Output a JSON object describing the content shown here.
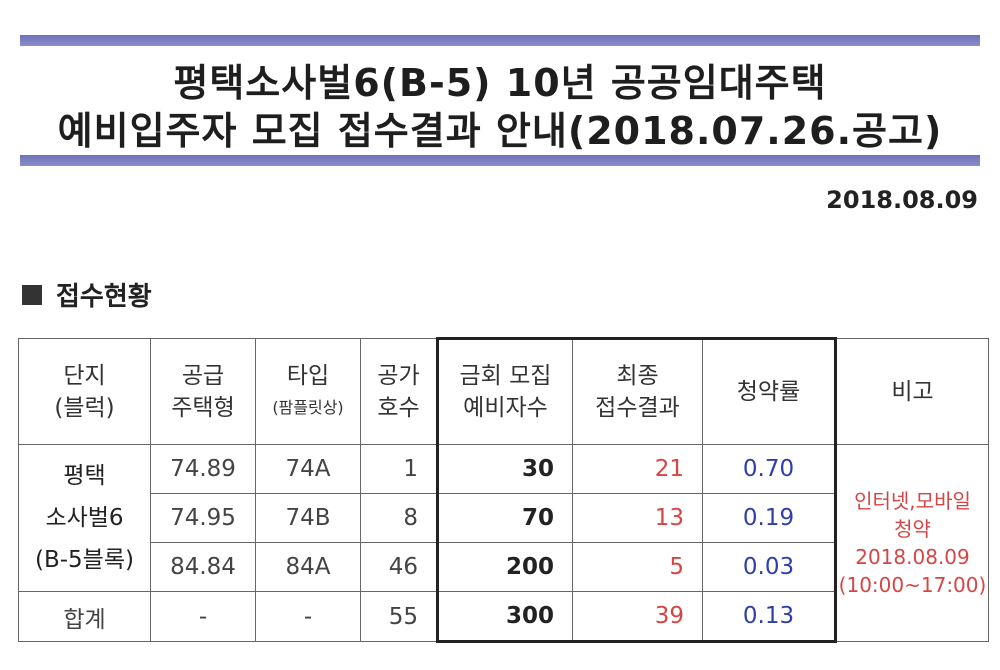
{
  "header": {
    "title_line1": "평택소사벌6(B-5) 10년 공공임대주택",
    "title_line2": "예비입주자 모집 접수결과 안내(2018.07.26.공고)",
    "date": "2018.08.09"
  },
  "section": {
    "title": "접수현황"
  },
  "table": {
    "headers": {
      "complex_line1": "단지",
      "complex_line2": "(블럭)",
      "supply_line1": "공급",
      "supply_line2": "주택형",
      "type_line1": "타입",
      "type_line2": "(팜플릿상)",
      "vacant_line1": "공가",
      "vacant_line2": "호수",
      "recruit_line1": "금회 모집",
      "recruit_line2": "예비자수",
      "final_line1": "최종",
      "final_line2": "접수결과",
      "rate": "청약률",
      "remark": "비고"
    },
    "complex_name_line1": "평택",
    "complex_name_line2": "소사벌6",
    "complex_name_line3": "(B-5블록)",
    "rows": [
      {
        "supply": "74.89",
        "type": "74A",
        "vacant": "1",
        "recruit": "30",
        "final": "21",
        "rate": "0.70"
      },
      {
        "supply": "74.95",
        "type": "74B",
        "vacant": "8",
        "recruit": "70",
        "final": "13",
        "rate": "0.19"
      },
      {
        "supply": "84.84",
        "type": "84A",
        "vacant": "46",
        "recruit": "200",
        "final": "5",
        "rate": "0.03"
      }
    ],
    "total": {
      "label": "합계",
      "supply": "-",
      "type": "-",
      "vacant": "55",
      "recruit": "300",
      "final": "39",
      "rate": "0.13"
    },
    "remark_line1": "인터넷,모바일",
    "remark_line2": "청약",
    "remark_line3": "2018.08.09",
    "remark_line4": "(10:00~17:00)"
  }
}
